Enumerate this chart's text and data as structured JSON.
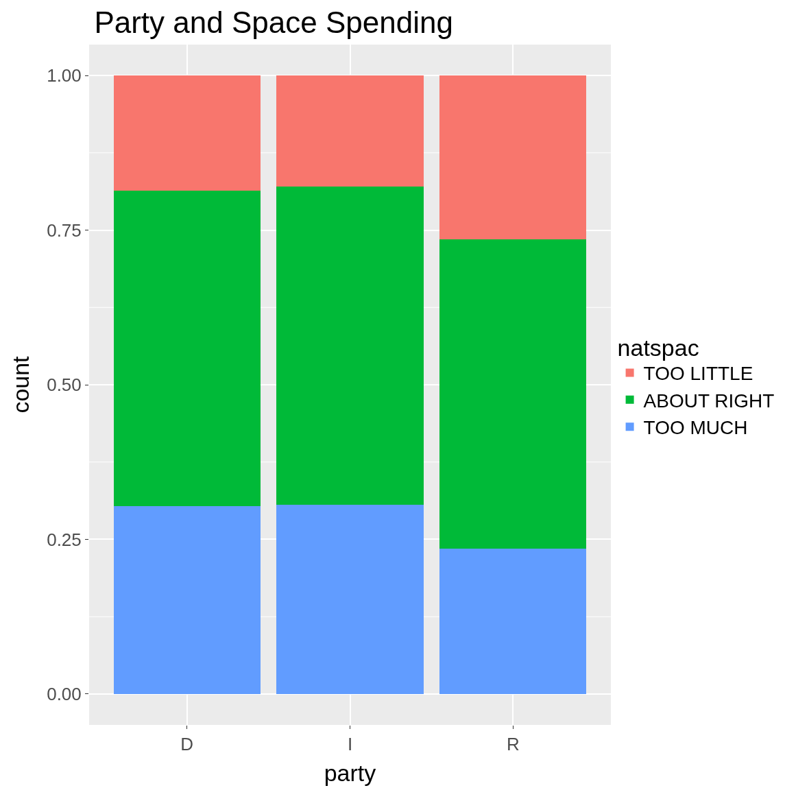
{
  "chart_data": {
    "type": "bar",
    "title": "Party and Space Spending",
    "xlabel": "party",
    "ylabel": "count",
    "legend_title": "natspac",
    "categories": [
      "D",
      "I",
      "R"
    ],
    "stacked": true,
    "series": [
      {
        "name": "TOO MUCH",
        "color": "#619cff",
        "values": [
          0.304,
          0.306,
          0.235
        ]
      },
      {
        "name": "ABOUT RIGHT",
        "color": "#00ba38",
        "values": [
          0.51,
          0.514,
          0.5
        ]
      },
      {
        "name": "TOO LITTLE",
        "color": "#f8766d",
        "values": [
          0.186,
          0.18,
          0.265
        ]
      }
    ],
    "ylim": [
      -0.05,
      1.05
    ],
    "yticks": [
      {
        "value": 0,
        "label": "0.00"
      },
      {
        "value": 0.25,
        "label": "0.25"
      },
      {
        "value": 0.5,
        "label": "0.50"
      },
      {
        "value": 0.75,
        "label": "0.75"
      },
      {
        "value": 1,
        "label": "1.00"
      }
    ],
    "grid": true,
    "legend": "right"
  }
}
